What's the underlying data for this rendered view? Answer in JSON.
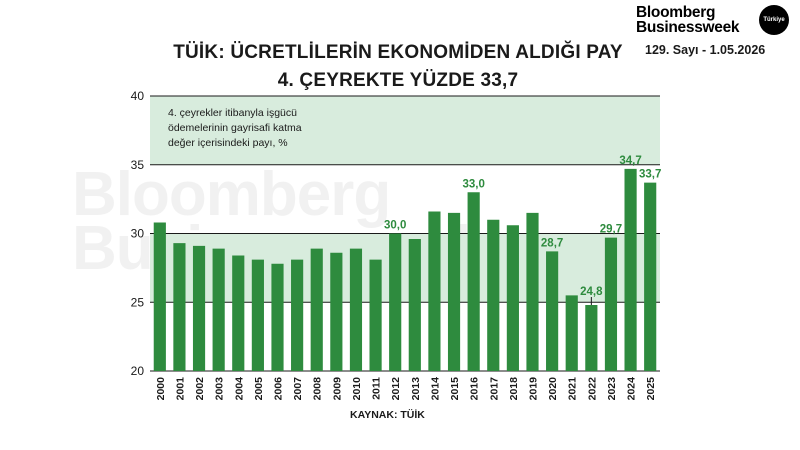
{
  "header": {
    "title_line1": "TÜİK: ÜCRETLİLERİN EKONOMİDEN ALDIĞI PAY",
    "title_line2": "4. ÇEYREKTE YÜZDE 33,7"
  },
  "brand": {
    "name_line1": "Bloomberg",
    "name_line2": "Businessweek",
    "badge": "Türkiye",
    "issue": "129. Sayı - 1.05.2026"
  },
  "watermark": {
    "line1": "Bloomberg",
    "line2": "Businessweek"
  },
  "note": {
    "line1": "4. çeyrekler itibanyla işgücü",
    "line2": "ödemelerinin gayrisafi katma",
    "line3": "değer içerisindeki payı, %"
  },
  "source": "KAYNAK: TÜİK",
  "colors": {
    "bar": "#2e8b3e",
    "band": "#d8ecdd",
    "label": "#2e8b3e",
    "grid": "#1a1a1a"
  },
  "chart_data": {
    "type": "bar",
    "categories": [
      "2000",
      "2001",
      "2002",
      "2003",
      "2004",
      "2005",
      "2006",
      "2007",
      "2008",
      "2009",
      "2010",
      "2011",
      "2012",
      "2013",
      "2014",
      "2015",
      "2016",
      "2017",
      "2018",
      "2019",
      "2020",
      "2021",
      "2022",
      "2023",
      "2024",
      "2025"
    ],
    "values": [
      30.8,
      29.3,
      29.1,
      28.9,
      28.4,
      28.1,
      27.8,
      28.1,
      28.9,
      28.6,
      28.9,
      28.1,
      30.0,
      29.6,
      31.6,
      31.5,
      33.0,
      31.0,
      30.6,
      31.5,
      28.7,
      25.5,
      24.8,
      29.7,
      34.7,
      33.7
    ],
    "data_labels": [
      {
        "category": "2012",
        "text": "30,0"
      },
      {
        "category": "2016",
        "text": "33,0"
      },
      {
        "category": "2020",
        "text": "28,7"
      },
      {
        "category": "2022",
        "text": "24,8"
      },
      {
        "category": "2023",
        "text": "29,7"
      },
      {
        "category": "2024",
        "text": "34,7"
      },
      {
        "category": "2025",
        "text": "33,7"
      }
    ],
    "ylim": [
      20,
      40
    ],
    "yticks": [
      20,
      25,
      30,
      35,
      40
    ],
    "shaded_bands": [
      [
        25,
        30
      ],
      [
        35,
        40
      ]
    ],
    "grid": true,
    "xlabel": "",
    "ylabel": ""
  }
}
